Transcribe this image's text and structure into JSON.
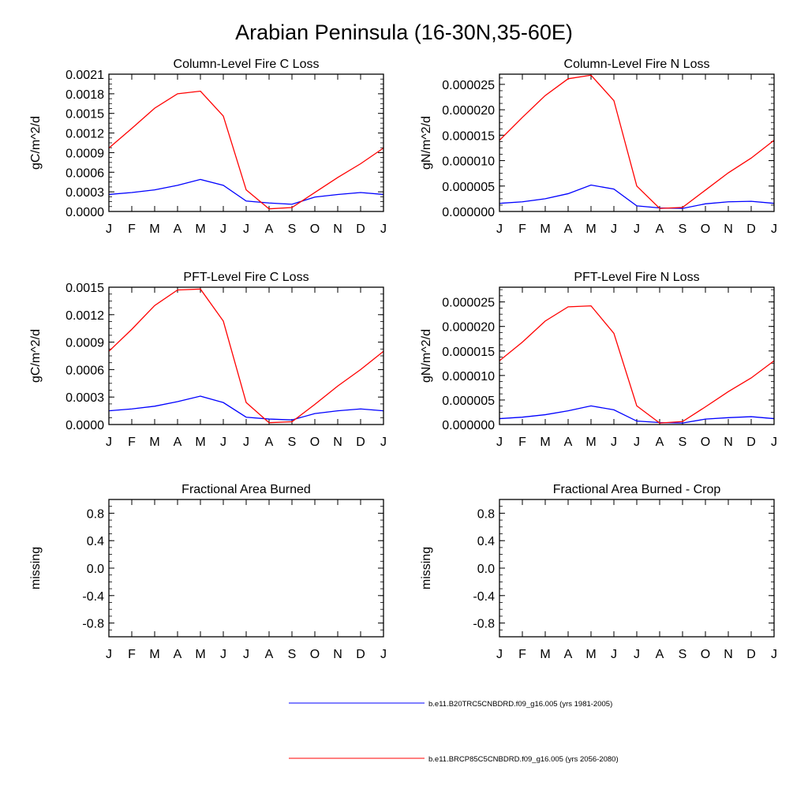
{
  "figure": {
    "title": "Arabian Peninsula (16-30N,35-60E)"
  },
  "colors": {
    "series_1": "#0000ff",
    "series_2": "#ff0000",
    "axis": "#000000"
  },
  "legend": {
    "placement": "bottom-center",
    "entries": [
      {
        "label": "b.e11.B20TRC5CNBDRD.f09_g16.005 (yrs 1981-2005)",
        "color": "#0000ff"
      },
      {
        "label": "b.e11.BRCP85C5CNBDRD.f09_g16.005 (yrs 2056-2080)",
        "color": "#ff0000"
      }
    ]
  },
  "chart_data": [
    {
      "type": "line",
      "title": "Column-Level Fire C Loss",
      "ylabel": "gC/m^2/d",
      "xlabel": "",
      "categories": [
        "J",
        "F",
        "M",
        "A",
        "M",
        "J",
        "J",
        "A",
        "S",
        "O",
        "N",
        "D",
        "J"
      ],
      "ylim": [
        0,
        0.0021
      ],
      "yticks": [
        "0.0000",
        "0.0003",
        "0.0006",
        "0.0009",
        "0.0012",
        "0.0015",
        "0.0018",
        "0.0021"
      ],
      "ytick_values": [
        0,
        0.0003,
        0.0006,
        0.0009,
        0.0012,
        0.0015,
        0.0018,
        0.0021
      ],
      "series": [
        {
          "values": [
            0.00026,
            0.00029,
            0.00033,
            0.0004,
            0.00049,
            0.0004,
            0.00016,
            0.00013,
            0.00011,
            0.00022,
            0.00026,
            0.00029,
            0.00026
          ],
          "color": "#0000ff"
        },
        {
          "values": [
            0.00097,
            0.00127,
            0.00158,
            0.0018,
            0.00184,
            0.00146,
            0.00033,
            4e-05,
            6e-05,
            0.00029,
            0.00052,
            0.00073,
            0.00097
          ],
          "color": "#ff0000"
        }
      ]
    },
    {
      "type": "line",
      "title": "Column-Level Fire N Loss",
      "ylabel": "gN/m^2/d",
      "xlabel": "",
      "categories": [
        "J",
        "F",
        "M",
        "A",
        "M",
        "J",
        "J",
        "A",
        "S",
        "O",
        "N",
        "D",
        "J"
      ],
      "ylim": [
        0,
        2.7e-05
      ],
      "yticks": [
        "0.000000",
        "0.000005",
        "0.000010",
        "0.000015",
        "0.000020",
        "0.000025"
      ],
      "ytick_values": [
        0,
        5e-06,
        1e-05,
        1.5e-05,
        2e-05,
        2.5e-05
      ],
      "series": [
        {
          "values": [
            1.6e-06,
            1.9e-06,
            2.5e-06,
            3.5e-06,
            5.2e-06,
            4.4e-06,
            1.1e-06,
            7e-07,
            6e-07,
            1.5e-06,
            1.9e-06,
            2e-06,
            1.6e-06
          ],
          "color": "#0000ff"
        },
        {
          "values": [
            1.4e-05,
            1.85e-05,
            2.28e-05,
            2.61e-05,
            2.68e-05,
            2.18e-05,
            5e-06,
            6e-07,
            8e-07,
            4.2e-06,
            7.6e-06,
            1.05e-05,
            1.4e-05
          ],
          "color": "#ff0000"
        }
      ]
    },
    {
      "type": "line",
      "title": "PFT-Level Fire C Loss",
      "ylabel": "gC/m^2/d",
      "xlabel": "",
      "categories": [
        "J",
        "F",
        "M",
        "A",
        "M",
        "J",
        "J",
        "A",
        "S",
        "O",
        "N",
        "D",
        "J"
      ],
      "ylim": [
        0,
        0.0015
      ],
      "yticks": [
        "0.0000",
        "0.0003",
        "0.0006",
        "0.0009",
        "0.0012",
        "0.0015"
      ],
      "ytick_values": [
        0,
        0.0003,
        0.0006,
        0.0009,
        0.0012,
        0.0015
      ],
      "series": [
        {
          "values": [
            0.00015,
            0.00017,
            0.0002,
            0.00025,
            0.00031,
            0.00024,
            8e-05,
            6e-05,
            5e-05,
            0.00012,
            0.00015,
            0.00017,
            0.00015
          ],
          "color": "#0000ff"
        },
        {
          "values": [
            0.0008,
            0.00104,
            0.0013,
            0.00147,
            0.00148,
            0.00113,
            0.00024,
            2e-05,
            3e-05,
            0.00022,
            0.00042,
            0.0006,
            0.0008
          ],
          "color": "#ff0000"
        }
      ]
    },
    {
      "type": "line",
      "title": "PFT-Level Fire N Loss",
      "ylabel": "gN/m^2/d",
      "xlabel": "",
      "categories": [
        "J",
        "F",
        "M",
        "A",
        "M",
        "J",
        "J",
        "A",
        "S",
        "O",
        "N",
        "D",
        "J"
      ],
      "ylim": [
        0,
        2.8e-05
      ],
      "yticks": [
        "0.000000",
        "0.000005",
        "0.000010",
        "0.000015",
        "0.000020",
        "0.000025"
      ],
      "ytick_values": [
        0,
        5e-06,
        1e-05,
        1.5e-05,
        2e-05,
        2.5e-05
      ],
      "series": [
        {
          "values": [
            1.2e-06,
            1.5e-06,
            2e-06,
            2.8e-06,
            3.8e-06,
            3e-06,
            7e-07,
            4e-07,
            3e-07,
            1.1e-06,
            1.4e-06,
            1.6e-06,
            1.2e-06
          ],
          "color": "#0000ff"
        },
        {
          "values": [
            1.3e-05,
            1.68e-05,
            2.11e-05,
            2.4e-05,
            2.42e-05,
            1.86e-05,
            3.8e-06,
            3e-07,
            6e-07,
            3.6e-06,
            6.7e-06,
            9.5e-06,
            1.3e-05
          ],
          "color": "#ff0000"
        }
      ]
    },
    {
      "type": "line",
      "title": "Fractional Area Burned",
      "ylabel": "missing",
      "xlabel": "",
      "categories": [
        "J",
        "F",
        "M",
        "A",
        "M",
        "J",
        "J",
        "A",
        "S",
        "O",
        "N",
        "D",
        "J"
      ],
      "ylim": [
        -1,
        1
      ],
      "yticks": [
        "-0.8",
        "-0.4",
        "0.0",
        "0.4",
        "0.8"
      ],
      "ytick_values": [
        -0.8,
        -0.4,
        0,
        0.4,
        0.8
      ],
      "series": []
    },
    {
      "type": "line",
      "title": "Fractional Area Burned - Crop",
      "ylabel": "missing",
      "xlabel": "",
      "categories": [
        "J",
        "F",
        "M",
        "A",
        "M",
        "J",
        "J",
        "A",
        "S",
        "O",
        "N",
        "D",
        "J"
      ],
      "ylim": [
        -1,
        1
      ],
      "yticks": [
        "-0.8",
        "-0.4",
        "0.0",
        "0.4",
        "0.8"
      ],
      "ytick_values": [
        -0.8,
        -0.4,
        0,
        0.4,
        0.8
      ],
      "series": []
    }
  ]
}
